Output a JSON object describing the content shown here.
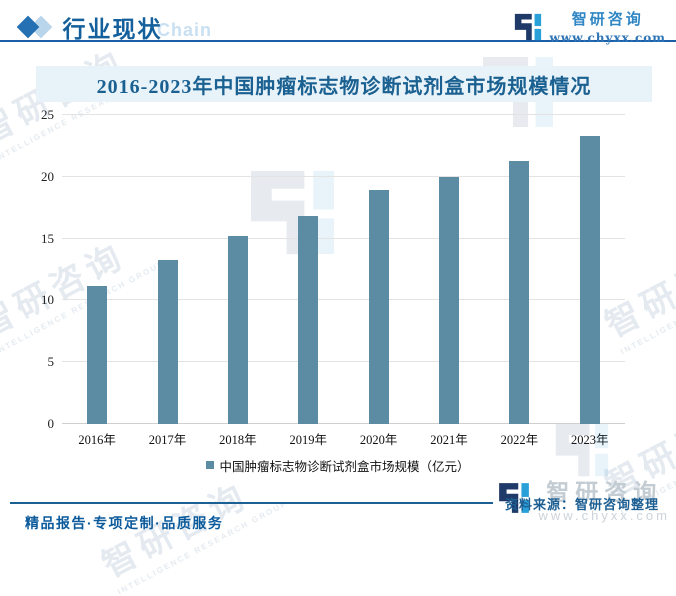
{
  "header": {
    "section_title": "行业现状",
    "brand": {
      "name": "智研咨询",
      "url": "www.chyxx.com"
    }
  },
  "chart": {
    "title": "2016-2023年中国肿瘤标志物诊断试剂盒市场规模情况",
    "source": "资料来源：智研咨询整理"
  },
  "chart_data": {
    "type": "bar",
    "title": "2016-2023年中国肿瘤标志物诊断试剂盒市场规模情况",
    "categories": [
      "2016年",
      "2017年",
      "2018年",
      "2019年",
      "2020年",
      "2021年",
      "2022年",
      "2023年"
    ],
    "values": [
      11.2,
      13.3,
      15.2,
      16.8,
      18.9,
      20,
      21.3,
      23.3
    ],
    "series_name": "中国肿瘤标志物诊断试剂盒市场规模（亿元）",
    "ylim": [
      0,
      25
    ],
    "yticks": [
      0,
      5,
      10,
      15,
      20,
      25
    ],
    "bar_color": "#5C8BA4",
    "grid": true,
    "legend_position": "bottom"
  },
  "footer": {
    "tagline": "精品报告·专项定制·品质服务",
    "brand": {
      "name": "智研咨询",
      "url": "www.chyxx.com"
    }
  },
  "watermarks": {
    "cjk": "智研咨询",
    "en": "INTELLIGENCE RESEARCH GROUP",
    "chain": "Chain"
  },
  "colors": {
    "accent_blue": "#14609c",
    "title_blue": "#1a6191",
    "band_bg": "#e8f2f9",
    "bar": "#5C8BA4"
  }
}
